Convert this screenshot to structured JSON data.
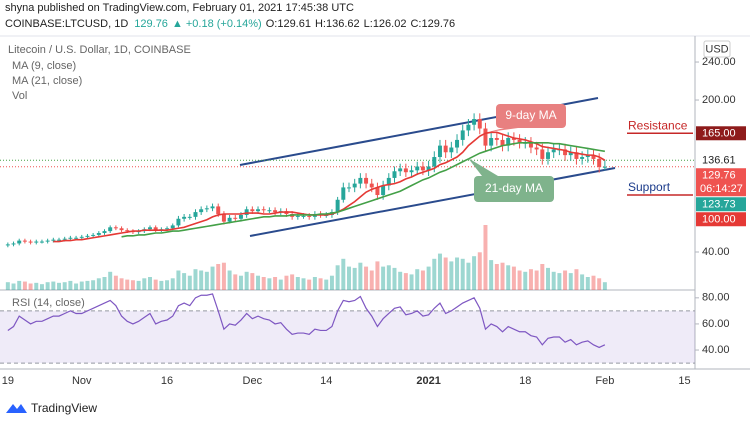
{
  "header": {
    "publisher": "shyna published on TradingView.com, February 01, 2021 17:45:38 UTC",
    "symbol": "COINBASE:LTCUSD, 1D",
    "price": "129.76",
    "change": "▲ +0.18 (+0.14%)",
    "ohlc": [
      "O:129.61",
      "H:136.62",
      "L:126.02",
      "C:129.76"
    ]
  },
  "chart_data": {
    "type": "candlestick",
    "title": "Litecoin / U.S. Dollar, 1D, COINBASE",
    "currency": "USD",
    "categories": [
      "19",
      null,
      null,
      null,
      null,
      null,
      null,
      null,
      null,
      null,
      null,
      null,
      null,
      "Nov",
      null,
      null,
      null,
      null,
      null,
      null,
      null,
      null,
      null,
      null,
      null,
      null,
      null,
      null,
      "16",
      null,
      null,
      null,
      null,
      null,
      null,
      null,
      null,
      null,
      null,
      null,
      null,
      null,
      null,
      "Dec",
      null,
      null,
      null,
      null,
      null,
      null,
      null,
      null,
      null,
      null,
      null,
      null,
      "14",
      null,
      null,
      null,
      null,
      null,
      null,
      null,
      null,
      null,
      null,
      null,
      null,
      null,
      null,
      null,
      null,
      null,
      "2021",
      null,
      null,
      null,
      null,
      null,
      null,
      null,
      null,
      null,
      null,
      null,
      null,
      null,
      null,
      null,
      null,
      "18",
      null,
      null,
      null,
      null,
      null,
      null,
      null,
      null,
      null,
      null,
      null,
      null,
      null,
      "Feb",
      null,
      null,
      null,
      null,
      null,
      null,
      null,
      null,
      null,
      null,
      null,
      null,
      null,
      "15",
      null
    ],
    "open": [
      47,
      48,
      49,
      52,
      51,
      50,
      51,
      51,
      52,
      53,
      53,
      54,
      55,
      55,
      56,
      57,
      58,
      60,
      62,
      66,
      65,
      63,
      62,
      61,
      62,
      64,
      66,
      63,
      64,
      65,
      68,
      75,
      77,
      77,
      82,
      85,
      86,
      88,
      80,
      72,
      76,
      75,
      79,
      85,
      83,
      85,
      84,
      84,
      82,
      83,
      80,
      77,
      78,
      78,
      77,
      80,
      79,
      79,
      82,
      95,
      108,
      108,
      112,
      118,
      112,
      108,
      100,
      110,
      118,
      125,
      128,
      124,
      126,
      130,
      126,
      130,
      140,
      152,
      145,
      150,
      158,
      168,
      174,
      180,
      170,
      152,
      160,
      158,
      152,
      160,
      158,
      155,
      155,
      150,
      148,
      138,
      145,
      148,
      148,
      142,
      145,
      138,
      140,
      142,
      138,
      129.61,
      null,
      null,
      null,
      null,
      null,
      null,
      null,
      null,
      null,
      null,
      null,
      null,
      null,
      null,
      null
    ],
    "high": [
      50,
      51,
      54,
      54,
      53,
      53,
      53,
      54,
      55,
      55,
      56,
      57,
      57,
      58,
      59,
      60,
      62,
      64,
      68,
      68,
      67,
      65,
      64,
      64,
      66,
      68,
      68,
      66,
      67,
      70,
      78,
      80,
      80,
      85,
      88,
      89,
      91,
      91,
      83,
      79,
      79,
      82,
      88,
      88,
      88,
      88,
      87,
      87,
      86,
      86,
      83,
      81,
      81,
      81,
      83,
      83,
      82,
      85,
      98,
      113,
      113,
      117,
      123,
      123,
      117,
      113,
      115,
      123,
      130,
      133,
      133,
      131,
      135,
      135,
      136,
      146,
      158,
      158,
      156,
      164,
      174,
      180,
      186,
      186,
      176,
      166,
      166,
      164,
      166,
      166,
      164,
      161,
      161,
      156,
      154,
      151,
      154,
      154,
      154,
      151,
      151,
      146,
      148,
      148,
      144,
      136.62,
      null,
      null,
      null,
      null,
      null,
      null,
      null,
      null,
      null,
      null,
      null,
      null,
      null,
      null,
      null
    ],
    "low": [
      45,
      46,
      47,
      49,
      48,
      48,
      49,
      49,
      50,
      51,
      51,
      52,
      53,
      53,
      54,
      55,
      56,
      58,
      60,
      63,
      61,
      60,
      59,
      59,
      60,
      62,
      61,
      61,
      62,
      63,
      66,
      72,
      74,
      74,
      79,
      82,
      83,
      77,
      69,
      70,
      72,
      72,
      76,
      80,
      80,
      81,
      81,
      79,
      79,
      77,
      74,
      74,
      75,
      74,
      74,
      76,
      76,
      76,
      79,
      92,
      103,
      103,
      107,
      107,
      103,
      95,
      95,
      105,
      113,
      120,
      119,
      119,
      121,
      121,
      120,
      124,
      134,
      139,
      139,
      144,
      152,
      162,
      168,
      164,
      146,
      146,
      152,
      146,
      146,
      152,
      149,
      149,
      144,
      142,
      132,
      132,
      139,
      142,
      136,
      136,
      132,
      132,
      134,
      132,
      123.6,
      126.02,
      null,
      null,
      null,
      null,
      null,
      null,
      null,
      null,
      null,
      null,
      null,
      null,
      null,
      null,
      null
    ],
    "close": [
      48,
      49,
      52,
      51,
      50,
      51,
      51,
      52,
      53,
      53,
      54,
      55,
      55,
      56,
      57,
      58,
      60,
      62,
      66,
      65,
      63,
      62,
      61,
      62,
      64,
      66,
      63,
      64,
      65,
      68,
      75,
      77,
      77,
      82,
      85,
      86,
      88,
      80,
      72,
      76,
      75,
      79,
      85,
      83,
      85,
      84,
      84,
      82,
      83,
      80,
      77,
      78,
      78,
      77,
      80,
      79,
      79,
      82,
      95,
      108,
      108,
      112,
      118,
      112,
      108,
      100,
      110,
      118,
      125,
      128,
      124,
      126,
      130,
      126,
      130,
      140,
      152,
      145,
      150,
      158,
      168,
      174,
      180,
      170,
      152,
      160,
      158,
      152,
      160,
      158,
      155,
      155,
      150,
      148,
      138,
      145,
      148,
      148,
      142,
      145,
      138,
      140,
      142,
      138,
      129.6,
      129.76,
      null,
      null,
      null,
      null,
      null,
      null,
      null,
      null,
      null,
      null,
      null,
      null,
      null,
      null,
      null
    ],
    "up_color": "#26a69a",
    "down_color": "#ef5350",
    "ylim": [
      0,
      263.2
    ],
    "yticks": [
      {
        "value": 40,
        "label": "40.00"
      },
      {
        "value": 200,
        "label": "200.00"
      },
      {
        "value": 240,
        "label": "240.00"
      }
    ],
    "series": [
      {
        "name": "MA (9, close)",
        "color": "#e53935",
        "values": [
          null,
          null,
          null,
          null,
          null,
          null,
          null,
          null,
          51,
          51,
          52,
          52,
          53,
          53,
          54,
          55,
          56,
          57,
          58,
          59,
          60,
          61,
          62,
          62,
          63,
          63,
          63,
          63,
          63,
          64,
          65,
          66,
          68,
          70,
          72,
          74,
          77,
          79,
          80,
          80,
          80,
          80,
          81,
          81,
          81,
          80,
          80,
          81,
          82,
          82,
          82,
          81,
          80,
          79,
          79,
          79,
          79,
          80,
          82,
          85,
          89,
          93,
          98,
          103,
          106,
          108,
          110,
          111,
          112,
          114,
          117,
          119,
          122,
          124,
          126,
          128,
          132,
          134,
          137,
          140,
          145,
          152,
          157,
          162,
          165,
          166,
          166,
          164,
          162,
          160,
          159,
          158,
          156,
          154,
          151,
          150,
          149,
          148,
          147,
          145,
          144,
          143,
          142,
          142,
          140,
          136.6,
          null,
          null,
          null,
          null,
          null,
          null,
          null,
          null,
          null,
          null,
          null,
          null,
          null,
          null,
          null
        ]
      },
      {
        "name": "MA (21, close)",
        "color": "#43a047",
        "values": [
          null,
          null,
          null,
          null,
          null,
          null,
          null,
          null,
          null,
          null,
          null,
          null,
          null,
          null,
          null,
          null,
          null,
          null,
          null,
          null,
          56,
          57,
          57,
          58,
          58,
          59,
          60,
          60,
          61,
          62,
          62,
          63,
          64,
          65,
          66,
          67,
          68,
          69,
          70,
          71,
          72,
          73,
          74,
          75,
          76,
          77,
          77,
          78,
          78,
          78,
          79,
          79,
          79,
          79,
          79,
          80,
          80,
          81,
          82,
          84,
          86,
          88,
          90,
          92,
          94,
          96,
          98,
          100,
          102,
          104,
          107,
          110,
          113,
          116,
          118,
          121,
          124,
          126,
          129,
          132,
          135,
          138,
          141,
          144,
          146,
          148,
          150,
          152,
          153,
          154,
          155,
          155,
          155,
          155,
          155,
          155,
          154,
          154,
          153,
          152,
          151,
          150,
          149,
          148,
          147,
          146,
          null,
          null,
          null,
          null,
          null,
          null,
          null,
          null,
          null,
          null,
          null,
          null,
          null,
          null,
          null
        ]
      }
    ],
    "volume": {
      "name": "Vol",
      "ylim": [
        0,
        100
      ],
      "values": [
        12,
        10,
        14,
        13,
        10,
        11,
        9,
        12,
        13,
        11,
        12,
        14,
        10,
        13,
        14,
        15,
        18,
        20,
        28,
        22,
        18,
        16,
        15,
        14,
        18,
        20,
        16,
        14,
        15,
        18,
        30,
        26,
        22,
        32,
        30,
        28,
        36,
        40,
        42,
        30,
        24,
        22,
        28,
        26,
        22,
        20,
        18,
        20,
        16,
        22,
        24,
        20,
        18,
        16,
        20,
        18,
        16,
        22,
        38,
        48,
        36,
        34,
        42,
        36,
        30,
        44,
        36,
        38,
        34,
        28,
        26,
        24,
        32,
        30,
        36,
        48,
        56,
        50,
        44,
        50,
        48,
        42,
        52,
        58,
        100,
        46,
        40,
        42,
        38,
        36,
        30,
        28,
        32,
        30,
        40,
        34,
        28,
        26,
        30,
        26,
        32,
        24,
        20,
        22,
        18,
        12,
        null,
        null,
        null,
        null,
        null,
        null,
        null,
        null,
        null,
        null,
        null,
        null,
        null,
        null,
        null
      ]
    },
    "rsi": {
      "name": "RSI (14, close)",
      "color": "#7e57c2",
      "ylim": [
        27,
        86
      ],
      "yticks": [
        {
          "value": 40,
          "label": "40.00"
        },
        {
          "value": 60,
          "label": "60.00"
        },
        {
          "value": 80,
          "label": "80.00"
        }
      ],
      "band": [
        30,
        70
      ],
      "values": [
        55,
        58,
        66,
        63,
        60,
        62,
        62,
        64,
        66,
        66,
        68,
        70,
        68,
        68,
        70,
        72,
        74,
        76,
        78,
        74,
        66,
        62,
        60,
        62,
        65,
        68,
        60,
        62,
        63,
        66,
        74,
        76,
        74,
        80,
        82,
        82,
        83,
        70,
        56,
        60,
        59,
        63,
        68,
        64,
        66,
        64,
        63,
        60,
        61,
        56,
        52,
        53,
        53,
        52,
        56,
        55,
        55,
        58,
        70,
        78,
        77,
        78,
        81,
        72,
        66,
        58,
        64,
        68,
        72,
        73,
        67,
        68,
        70,
        66,
        67,
        72,
        76,
        68,
        70,
        73,
        76,
        78,
        80,
        72,
        56,
        60,
        58,
        54,
        58,
        56,
        54,
        54,
        51,
        50,
        44,
        49,
        50,
        50,
        46,
        48,
        44,
        46,
        47,
        44,
        42,
        44,
        null,
        null,
        null,
        null,
        null,
        null,
        null,
        null,
        null,
        null,
        null,
        null,
        null,
        null,
        null
      ]
    },
    "levels": [
      {
        "name": "Resistance",
        "value": 165,
        "label": "165.00",
        "color": "#c62828",
        "box_color": "#8e1b1b"
      },
      {
        "name": "Support",
        "value": 100,
        "label": "100.00",
        "color": "#1a3a8a",
        "box_color": "#e53935"
      }
    ],
    "price_labels": [
      {
        "value": 136.61,
        "label": "136.61",
        "color": "#43a047"
      },
      {
        "value": 129.76,
        "label": "129.76",
        "color": "#ef5350"
      },
      {
        "value": 123.73,
        "label": "123.73",
        "color": "#26a69a"
      }
    ],
    "countdown": "06:14:27",
    "annotations": [
      {
        "text": "9-day MA",
        "color": "#e88080"
      },
      {
        "text": "21-day MA",
        "color": "#7fb38c"
      }
    ]
  },
  "footer": {
    "brand": "TradingView"
  }
}
